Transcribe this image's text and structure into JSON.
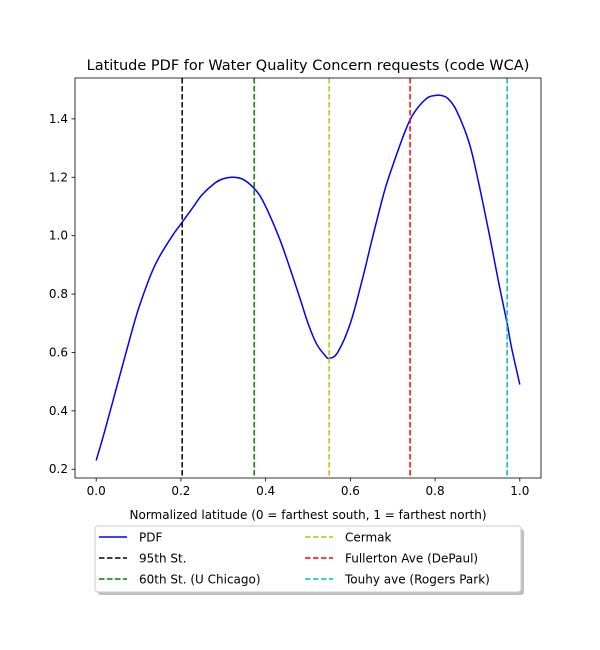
{
  "chart_data": {
    "type": "line",
    "title": "Latitude PDF for Water Quality Concern  requests (code WCA)",
    "xlabel": "Normalized latitude (0 = farthest south, 1 = farthest north)",
    "ylabel": "",
    "xlim": [
      -0.05,
      1.05
    ],
    "ylim": [
      0.17,
      1.54
    ],
    "xticks": [
      "0.0",
      "0.2",
      "0.4",
      "0.6",
      "0.8",
      "1.0"
    ],
    "yticks": [
      "0.2",
      "0.4",
      "0.6",
      "0.8",
      "1.0",
      "1.2",
      "1.4"
    ],
    "grid": false,
    "legend_position": "below plot, two columns",
    "series": [
      {
        "name": "PDF",
        "color": "#0000ff",
        "style": "solid",
        "x": [
          0.0,
          0.02,
          0.05,
          0.08,
          0.1,
          0.13,
          0.15,
          0.18,
          0.2,
          0.23,
          0.25,
          0.28,
          0.3,
          0.325,
          0.35,
          0.38,
          0.4,
          0.43,
          0.45,
          0.48,
          0.5,
          0.52,
          0.54,
          0.55,
          0.57,
          0.6,
          0.63,
          0.65,
          0.68,
          0.7,
          0.73,
          0.75,
          0.78,
          0.8,
          0.815,
          0.83,
          0.85,
          0.88,
          0.9,
          0.93,
          0.95,
          0.97,
          0.98,
          1.0
        ],
        "y": [
          0.23,
          0.33,
          0.49,
          0.65,
          0.75,
          0.87,
          0.93,
          1.0,
          1.04,
          1.1,
          1.14,
          1.18,
          1.195,
          1.2,
          1.19,
          1.15,
          1.1,
          1.0,
          0.92,
          0.79,
          0.7,
          0.63,
          0.59,
          0.58,
          0.6,
          0.7,
          0.86,
          0.98,
          1.15,
          1.24,
          1.36,
          1.42,
          1.47,
          1.48,
          1.48,
          1.47,
          1.43,
          1.32,
          1.2,
          0.99,
          0.84,
          0.7,
          0.62,
          0.49
        ]
      }
    ],
    "vlines": [
      {
        "name": "95th St.",
        "x": 0.203,
        "color": "#000000"
      },
      {
        "name": "60th St. (U Chicago)",
        "x": 0.373,
        "color": "#008000"
      },
      {
        "name": "Cermak",
        "x": 0.55,
        "color": "#bfbf00"
      },
      {
        "name": "Fullerton Ave (DePaul)",
        "x": 0.741,
        "color": "#ff0000"
      },
      {
        "name": "Touhy ave (Rogers Park)",
        "x": 0.97,
        "color": "#00bfbf"
      }
    ]
  }
}
